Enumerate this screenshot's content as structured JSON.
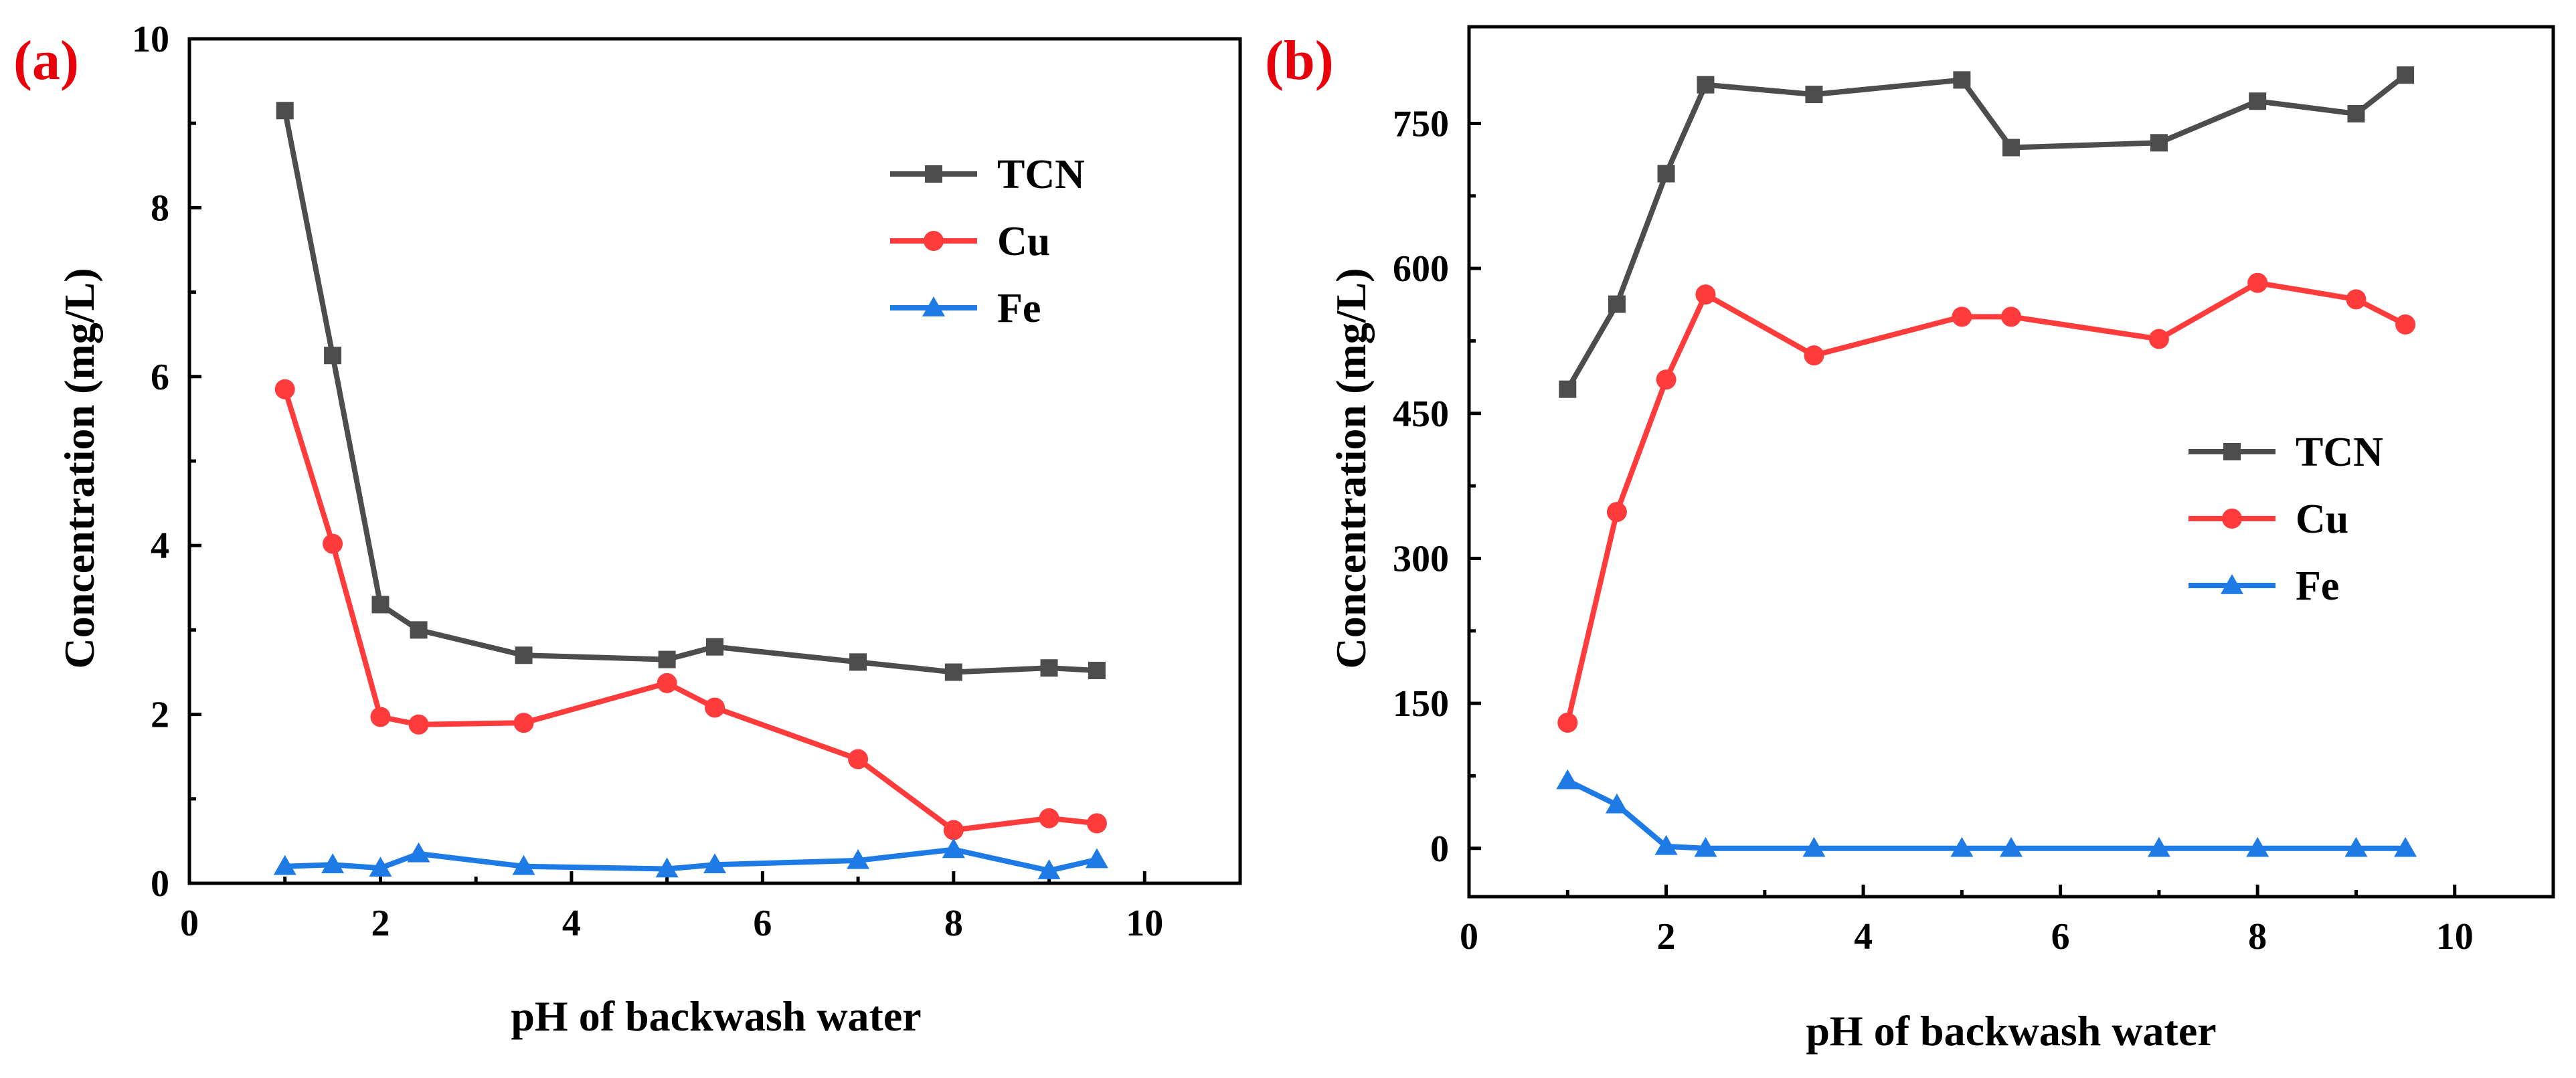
{
  "chart_data": [
    {
      "type": "line",
      "panel_label": "(a)",
      "panel_label_color": "#e8000b",
      "xlabel": "pH of backwash water",
      "ylabel": "Concentration (mg/L)",
      "xlim": [
        0,
        11
      ],
      "ylim": [
        0,
        10
      ],
      "xticks": [
        0,
        2,
        4,
        6,
        8,
        10
      ],
      "yticks": [
        0,
        2,
        4,
        6,
        8,
        10
      ],
      "xtick_labels": [
        "0",
        "2",
        "4",
        "6",
        "8",
        "10"
      ],
      "ytick_labels": [
        "0",
        "2",
        "4",
        "6",
        "8",
        "10"
      ],
      "legend_position": "top-right",
      "x": [
        1,
        1.5,
        2,
        2.4,
        3.5,
        5,
        5.5,
        7,
        8,
        9,
        9.5
      ],
      "series": [
        {
          "name": "TCN",
          "color": "#4d4d4d",
          "marker": "square",
          "values": [
            9.15,
            6.25,
            3.3,
            3.0,
            2.7,
            2.65,
            2.8,
            2.62,
            2.5,
            2.55,
            2.52
          ]
        },
        {
          "name": "Cu",
          "color": "#ff3b3b",
          "marker": "circle",
          "values": [
            5.85,
            4.02,
            1.97,
            1.88,
            1.9,
            2.37,
            2.08,
            1.47,
            0.63,
            0.77,
            0.71
          ]
        },
        {
          "name": "Fe",
          "color": "#1e7be6",
          "marker": "triangle",
          "values": [
            0.2,
            0.22,
            0.18,
            0.35,
            0.2,
            0.17,
            0.22,
            0.27,
            0.4,
            0.15,
            0.28
          ]
        }
      ]
    },
    {
      "type": "line",
      "panel_label": "(b)",
      "panel_label_color": "#e8000b",
      "xlabel": "pH of backwash water",
      "ylabel": "Concentration (mg/L)",
      "xlim": [
        0,
        11
      ],
      "ylim": [
        -50,
        850
      ],
      "xticks": [
        0,
        2,
        4,
        6,
        8,
        10
      ],
      "yticks": [
        0,
        150,
        300,
        450,
        600,
        750
      ],
      "xtick_labels": [
        "0",
        "2",
        "4",
        "6",
        "8",
        "10"
      ],
      "ytick_labels": [
        "0",
        "150",
        "300",
        "450",
        "600",
        "750"
      ],
      "legend_position": "center-right",
      "x": [
        1,
        1.5,
        2,
        2.4,
        3.5,
        5,
        5.5,
        7,
        8,
        9,
        9.5
      ],
      "series": [
        {
          "name": "TCN",
          "color": "#4d4d4d",
          "marker": "square",
          "values": [
            475,
            563,
            698,
            790,
            780,
            795,
            725,
            730,
            773,
            760,
            800
          ]
        },
        {
          "name": "Cu",
          "color": "#ff3b3b",
          "marker": "circle",
          "values": [
            130,
            348,
            485,
            573,
            510,
            550,
            550,
            527,
            585,
            568,
            542
          ]
        },
        {
          "name": "Fe",
          "color": "#1e7be6",
          "marker": "triangle",
          "values": [
            70,
            45,
            2,
            0,
            0,
            0,
            0,
            0,
            0,
            0,
            0
          ]
        }
      ]
    }
  ]
}
